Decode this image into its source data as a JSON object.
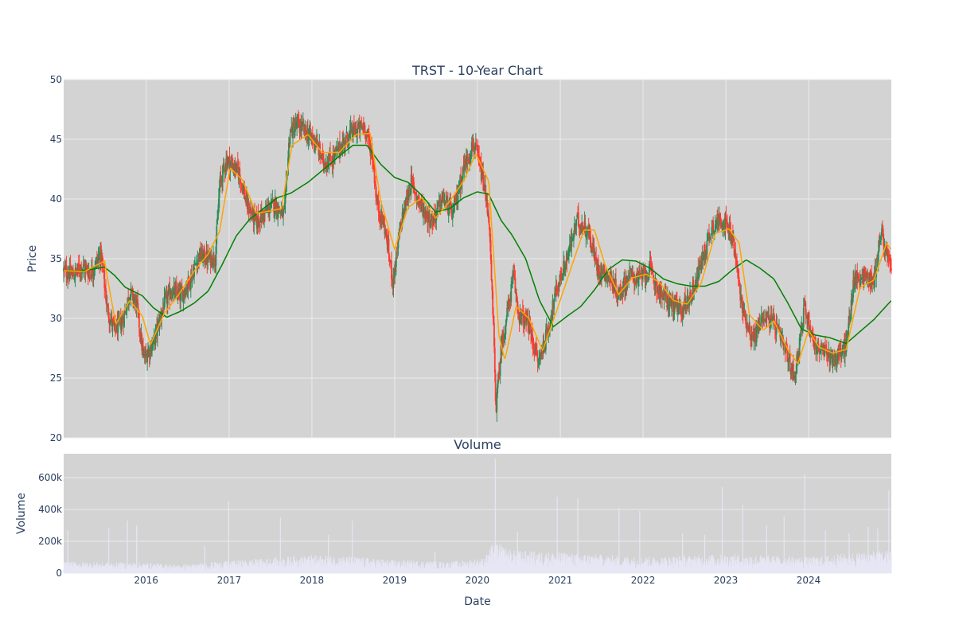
{
  "chart_data": [
    {
      "type": "candlestick",
      "title": "TRST - 10-Year Chart",
      "xlabel": "",
      "ylabel": "Price",
      "ylim": [
        20,
        50
      ],
      "xlim": [
        "2015-01-02",
        "2024-12-31"
      ],
      "yticks": [
        20,
        25,
        30,
        35,
        40,
        45,
        50
      ],
      "xticks": [
        "2016",
        "2017",
        "2018",
        "2019",
        "2020",
        "2021",
        "2022",
        "2023",
        "2024"
      ],
      "grid": true,
      "colors": {
        "background": "#d3d3d3",
        "grid": "#ebebeb",
        "up": "#2e8b57",
        "down": "#ff3b30",
        "ma_short": "#ffa500",
        "ma_long": "#008000",
        "text": "#2a3f5f"
      },
      "close_path": [
        [
          "2015-01-02",
          34.0
        ],
        [
          "2015-02-15",
          33.6
        ],
        [
          "2015-03-20",
          34.4
        ],
        [
          "2015-05-01",
          33.8
        ],
        [
          "2015-06-15",
          35.4
        ],
        [
          "2015-07-15",
          30.6
        ],
        [
          "2015-08-15",
          29.0
        ],
        [
          "2015-09-20",
          29.8
        ],
        [
          "2015-10-20",
          32.2
        ],
        [
          "2015-11-20",
          31.2
        ],
        [
          "2015-12-20",
          26.6
        ],
        [
          "2016-02-01",
          27.9
        ],
        [
          "2016-03-15",
          30.9
        ],
        [
          "2016-04-20",
          32.3
        ],
        [
          "2016-06-01",
          31.8
        ],
        [
          "2016-07-15",
          33.3
        ],
        [
          "2016-08-20",
          35.3
        ],
        [
          "2016-10-01",
          35.0
        ],
        [
          "2016-11-01",
          35.2
        ],
        [
          "2016-11-20",
          41.2
        ],
        [
          "2016-12-20",
          43.3
        ],
        [
          "2017-02-15",
          42.2
        ],
        [
          "2017-03-20",
          39.5
        ],
        [
          "2017-05-01",
          38.0
        ],
        [
          "2017-06-15",
          39.0
        ],
        [
          "2017-07-20",
          39.6
        ],
        [
          "2017-09-01",
          38.5
        ],
        [
          "2017-09-25",
          45.6
        ],
        [
          "2017-11-01",
          46.2
        ],
        [
          "2017-12-15",
          45.4
        ],
        [
          "2018-01-15",
          44.9
        ],
        [
          "2018-02-20",
          43.1
        ],
        [
          "2018-04-01",
          43.3
        ],
        [
          "2018-05-15",
          44.6
        ],
        [
          "2018-06-20",
          45.5
        ],
        [
          "2018-08-20",
          46.1
        ],
        [
          "2018-09-25",
          43.7
        ],
        [
          "2018-10-15",
          39.6
        ],
        [
          "2018-11-20",
          37.5
        ],
        [
          "2018-12-24",
          33.1
        ],
        [
          "2019-02-01",
          38.3
        ],
        [
          "2019-03-15",
          41.4
        ],
        [
          "2019-05-01",
          39.3
        ],
        [
          "2019-06-15",
          38.1
        ],
        [
          "2019-08-01",
          40.1
        ],
        [
          "2019-09-15",
          38.7
        ],
        [
          "2019-11-01",
          42.6
        ],
        [
          "2019-12-15",
          44.7
        ],
        [
          "2020-01-20",
          42.1
        ],
        [
          "2020-02-20",
          38.6
        ],
        [
          "2020-03-12",
          29.0
        ],
        [
          "2020-03-23",
          22.5
        ],
        [
          "2020-04-15",
          27.5
        ],
        [
          "2020-05-15",
          30.8
        ],
        [
          "2020-06-08",
          33.5
        ],
        [
          "2020-07-01",
          30.4
        ],
        [
          "2020-08-15",
          29.4
        ],
        [
          "2020-09-25",
          26.3
        ],
        [
          "2020-11-09",
          29.1
        ],
        [
          "2020-12-15",
          32.4
        ],
        [
          "2021-02-01",
          35.1
        ],
        [
          "2021-03-15",
          38.2
        ],
        [
          "2021-05-01",
          37.4
        ],
        [
          "2021-06-15",
          34.2
        ],
        [
          "2021-08-01",
          33.6
        ],
        [
          "2021-09-15",
          32.0
        ],
        [
          "2021-11-01",
          33.6
        ],
        [
          "2021-12-15",
          33.3
        ],
        [
          "2022-02-01",
          34.1
        ],
        [
          "2022-03-15",
          32.1
        ],
        [
          "2022-05-01",
          31.3
        ],
        [
          "2022-06-15",
          30.6
        ],
        [
          "2022-08-01",
          32.0
        ],
        [
          "2022-09-15",
          34.7
        ],
        [
          "2022-11-01",
          37.7
        ],
        [
          "2022-12-15",
          38.4
        ],
        [
          "2023-02-01",
          36.6
        ],
        [
          "2023-03-15",
          30.8
        ],
        [
          "2023-05-01",
          28.2
        ],
        [
          "2023-06-15",
          30.3
        ],
        [
          "2023-08-01",
          29.6
        ],
        [
          "2023-09-15",
          27.6
        ],
        [
          "2023-10-30",
          25.1
        ],
        [
          "2023-12-15",
          30.9
        ],
        [
          "2024-02-01",
          27.6
        ],
        [
          "2024-03-15",
          27.1
        ],
        [
          "2024-05-01",
          26.6
        ],
        [
          "2024-06-15",
          27.7
        ],
        [
          "2024-07-20",
          33.3
        ],
        [
          "2024-09-01",
          33.6
        ],
        [
          "2024-10-15",
          33.1
        ],
        [
          "2024-11-15",
          37.3
        ],
        [
          "2024-12-31",
          33.9
        ]
      ],
      "ma_short": [
        [
          "2015-01-02",
          34.0
        ],
        [
          "2015-04-01",
          33.9
        ],
        [
          "2015-07-01",
          34.8
        ],
        [
          "2015-08-20",
          29.5
        ],
        [
          "2015-10-20",
          31.5
        ],
        [
          "2015-12-15",
          30.2
        ],
        [
          "2016-01-20",
          27.8
        ],
        [
          "2016-03-20",
          30.4
        ],
        [
          "2016-05-20",
          31.9
        ],
        [
          "2016-08-01",
          34.0
        ],
        [
          "2016-10-01",
          35.4
        ],
        [
          "2016-11-20",
          37.3
        ],
        [
          "2017-01-05",
          42.6
        ],
        [
          "2017-03-01",
          41.6
        ],
        [
          "2017-05-01",
          38.8
        ],
        [
          "2017-07-01",
          39.0
        ],
        [
          "2017-08-20",
          39.2
        ],
        [
          "2017-10-05",
          44.5
        ],
        [
          "2017-12-15",
          45.4
        ],
        [
          "2018-02-15",
          43.9
        ],
        [
          "2018-05-01",
          43.9
        ],
        [
          "2018-07-15",
          45.4
        ],
        [
          "2018-09-15",
          45.5
        ],
        [
          "2018-11-01",
          39.8
        ],
        [
          "2019-01-01",
          35.8
        ],
        [
          "2019-03-01",
          39.3
        ],
        [
          "2019-05-01",
          40.1
        ],
        [
          "2019-07-01",
          38.4
        ],
        [
          "2019-09-01",
          39.8
        ],
        [
          "2019-11-01",
          41.5
        ],
        [
          "2019-12-25",
          43.8
        ],
        [
          "2020-02-20",
          41.5
        ],
        [
          "2020-04-05",
          28.6
        ],
        [
          "2020-05-01",
          26.5
        ],
        [
          "2020-06-20",
          31.0
        ],
        [
          "2020-08-15",
          30.0
        ],
        [
          "2020-10-15",
          27.3
        ],
        [
          "2020-12-15",
          30.6
        ],
        [
          "2021-02-15",
          34.1
        ],
        [
          "2021-04-15",
          37.4
        ],
        [
          "2021-06-01",
          37.4
        ],
        [
          "2021-07-15",
          34.6
        ],
        [
          "2021-09-15",
          32.0
        ],
        [
          "2021-11-15",
          33.4
        ],
        [
          "2022-01-15",
          33.7
        ],
        [
          "2022-03-15",
          33.0
        ],
        [
          "2022-05-15",
          31.5
        ],
        [
          "2022-07-15",
          31.2
        ],
        [
          "2022-09-15",
          33.0
        ],
        [
          "2022-11-15",
          37.1
        ],
        [
          "2023-01-15",
          37.5
        ],
        [
          "2023-03-01",
          36.3
        ],
        [
          "2023-04-15",
          30.3
        ],
        [
          "2023-06-15",
          29.0
        ],
        [
          "2023-08-01",
          29.8
        ],
        [
          "2023-10-01",
          27.4
        ],
        [
          "2023-11-15",
          26.2
        ],
        [
          "2024-01-01",
          29.0
        ],
        [
          "2024-02-15",
          27.6
        ],
        [
          "2024-04-15",
          27.1
        ],
        [
          "2024-06-15",
          27.4
        ],
        [
          "2024-08-15",
          32.6
        ],
        [
          "2024-10-15",
          33.2
        ],
        [
          "2024-12-10",
          36.3
        ],
        [
          "2024-12-31",
          35.7
        ]
      ],
      "ma_long": [
        [
          "2015-01-02",
          34.0
        ],
        [
          "2015-03-01",
          33.9
        ],
        [
          "2015-05-01",
          34.1
        ],
        [
          "2015-07-01",
          34.3
        ],
        [
          "2015-08-15",
          33.6
        ],
        [
          "2015-10-01",
          32.6
        ],
        [
          "2015-12-15",
          31.9
        ],
        [
          "2016-02-01",
          30.9
        ],
        [
          "2016-04-01",
          30.1
        ],
        [
          "2016-06-01",
          30.6
        ],
        [
          "2016-08-01",
          31.3
        ],
        [
          "2016-10-01",
          32.3
        ],
        [
          "2016-12-01",
          34.5
        ],
        [
          "2017-02-01",
          36.9
        ],
        [
          "2017-04-01",
          38.3
        ],
        [
          "2017-06-01",
          39.2
        ],
        [
          "2017-08-01",
          40.1
        ],
        [
          "2017-10-01",
          40.5
        ],
        [
          "2017-12-15",
          41.4
        ],
        [
          "2018-03-01",
          42.6
        ],
        [
          "2018-05-15",
          43.8
        ],
        [
          "2018-07-01",
          44.5
        ],
        [
          "2018-09-01",
          44.5
        ],
        [
          "2018-11-01",
          42.9
        ],
        [
          "2019-01-01",
          41.8
        ],
        [
          "2019-03-01",
          41.4
        ],
        [
          "2019-05-01",
          40.3
        ],
        [
          "2019-07-01",
          38.9
        ],
        [
          "2019-09-01",
          39.2
        ],
        [
          "2019-11-01",
          40.1
        ],
        [
          "2020-01-01",
          40.6
        ],
        [
          "2020-02-20",
          40.4
        ],
        [
          "2020-04-15",
          38.2
        ],
        [
          "2020-06-01",
          37.0
        ],
        [
          "2020-08-01",
          35.0
        ],
        [
          "2020-10-01",
          31.5
        ],
        [
          "2020-12-01",
          29.3
        ],
        [
          "2021-02-01",
          30.2
        ],
        [
          "2021-04-01",
          31.0
        ],
        [
          "2021-06-01",
          32.4
        ],
        [
          "2021-08-01",
          34.1
        ],
        [
          "2021-10-01",
          34.9
        ],
        [
          "2021-12-01",
          34.8
        ],
        [
          "2022-02-01",
          34.2
        ],
        [
          "2022-04-01",
          33.3
        ],
        [
          "2022-06-01",
          32.9
        ],
        [
          "2022-08-01",
          32.7
        ],
        [
          "2022-10-01",
          32.7
        ],
        [
          "2022-12-01",
          33.1
        ],
        [
          "2023-02-01",
          34.1
        ],
        [
          "2023-04-01",
          34.9
        ],
        [
          "2023-06-01",
          34.2
        ],
        [
          "2023-08-01",
          33.3
        ],
        [
          "2023-10-01",
          31.3
        ],
        [
          "2023-12-01",
          29.1
        ],
        [
          "2024-02-01",
          28.6
        ],
        [
          "2024-04-01",
          28.4
        ],
        [
          "2024-06-15",
          27.9
        ],
        [
          "2024-08-15",
          28.9
        ],
        [
          "2024-10-15",
          29.9
        ],
        [
          "2024-12-31",
          31.5
        ]
      ]
    },
    {
      "type": "bar",
      "title": "Volume",
      "xlabel": "Date",
      "ylabel": "Volume",
      "ylim": [
        0,
        750000
      ],
      "yticks": [
        0,
        200000,
        400000,
        600000
      ],
      "ytick_labels": [
        "0",
        "200k",
        "400k",
        "600k"
      ],
      "xticks": [
        "2016",
        "2017",
        "2018",
        "2019",
        "2020",
        "2021",
        "2022",
        "2023",
        "2024"
      ],
      "grid": true,
      "colors": {
        "bar": "#e6e6f5",
        "background": "#d3d3d3"
      },
      "baseline_profile": [
        [
          "2015-01-01",
          60000
        ],
        [
          "2016-01-01",
          55000
        ],
        [
          "2016-06-01",
          45000
        ],
        [
          "2017-01-01",
          65000
        ],
        [
          "2018-01-01",
          95000
        ],
        [
          "2018-06-01",
          90000
        ],
        [
          "2019-01-01",
          70000
        ],
        [
          "2019-09-01",
          60000
        ],
        [
          "2020-02-01",
          80000
        ],
        [
          "2020-03-15",
          170000
        ],
        [
          "2020-06-01",
          120000
        ],
        [
          "2021-01-01",
          110000
        ],
        [
          "2022-01-01",
          85000
        ],
        [
          "2023-01-01",
          100000
        ],
        [
          "2023-06-01",
          95000
        ],
        [
          "2024-01-01",
          85000
        ],
        [
          "2024-08-01",
          110000
        ],
        [
          "2024-12-31",
          120000
        ]
      ],
      "spikes": [
        [
          "2015-01-20",
          270000
        ],
        [
          "2015-07-20",
          280000
        ],
        [
          "2015-10-10",
          330000
        ],
        [
          "2015-11-20",
          300000
        ],
        [
          "2016-09-15",
          170000
        ],
        [
          "2016-12-30",
          450000
        ],
        [
          "2017-08-15",
          350000
        ],
        [
          "2018-06-29",
          330000
        ],
        [
          "2018-03-15",
          240000
        ],
        [
          "2019-06-28",
          130000
        ],
        [
          "2020-03-20",
          720000
        ],
        [
          "2020-06-26",
          260000
        ],
        [
          "2020-12-18",
          480000
        ],
        [
          "2021-03-19",
          470000
        ],
        [
          "2021-09-17",
          410000
        ],
        [
          "2021-12-17",
          390000
        ],
        [
          "2022-06-24",
          250000
        ],
        [
          "2022-09-30",
          240000
        ],
        [
          "2022-12-16",
          540000
        ],
        [
          "2023-03-17",
          430000
        ],
        [
          "2023-06-30",
          300000
        ],
        [
          "2023-09-15",
          360000
        ],
        [
          "2023-12-15",
          620000
        ],
        [
          "2024-03-15",
          270000
        ],
        [
          "2024-06-28",
          250000
        ],
        [
          "2024-09-20",
          290000
        ],
        [
          "2024-12-20",
          520000
        ],
        [
          "2024-11-01",
          280000
        ]
      ]
    }
  ]
}
